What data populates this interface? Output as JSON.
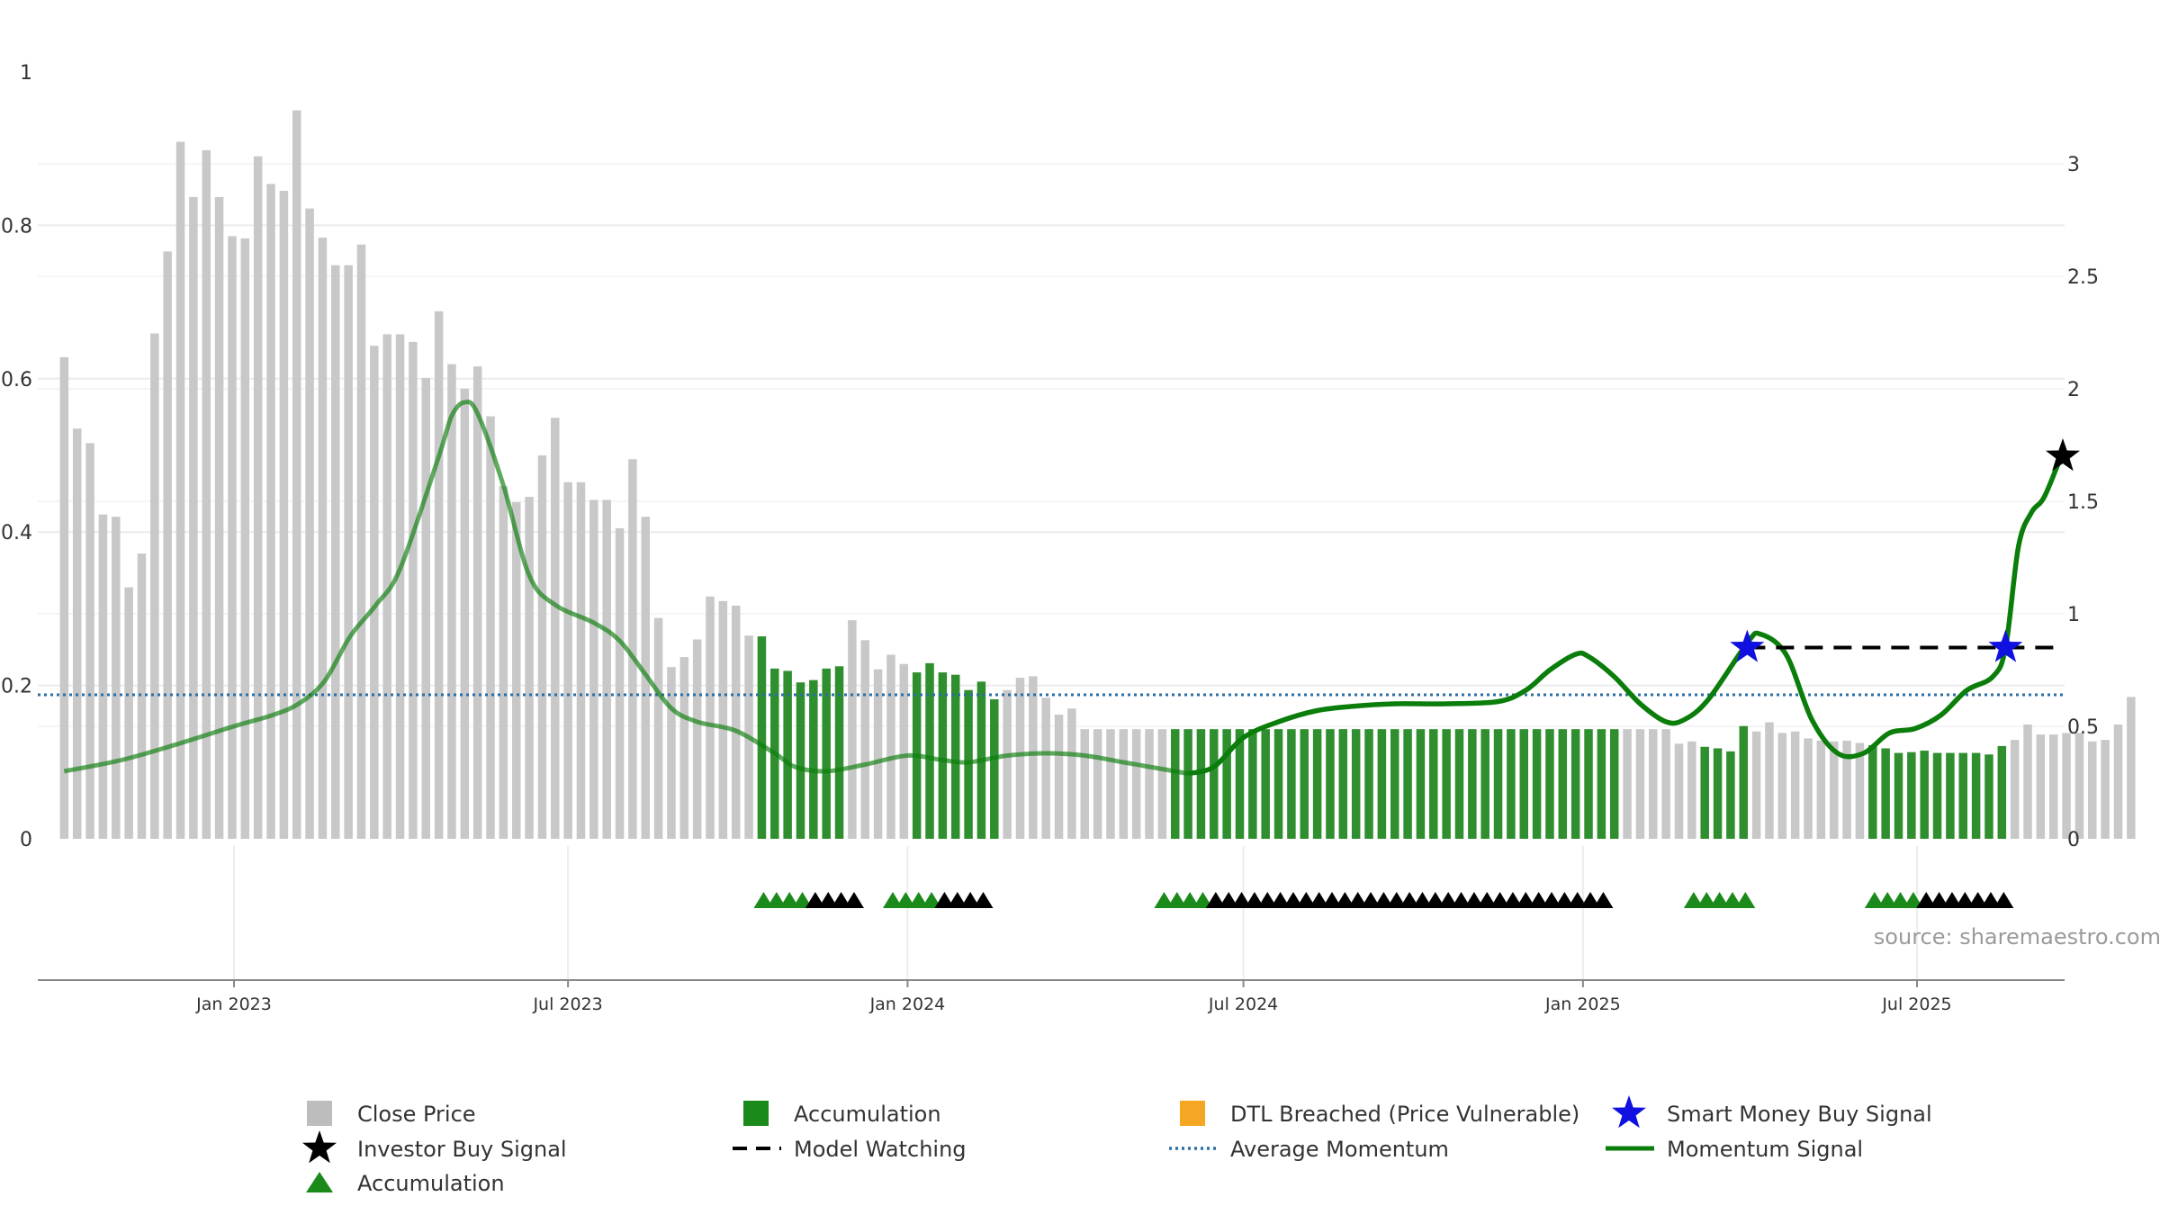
{
  "chart_data": {
    "type": "bar",
    "x_axis": {
      "ticks": [
        "Jan 2023",
        "Jul 2023",
        "Jan 2024",
        "Jul 2024",
        "Jan 2025",
        "Jul 2025"
      ],
      "tick_dates": [
        "2023-01-01",
        "2023-07-01",
        "2024-01-01",
        "2024-07-01",
        "2025-01-01",
        "2025-07-01"
      ],
      "range": [
        "2022-10-01",
        "2025-09-30"
      ]
    },
    "left_axis": {
      "range": [
        0,
        1
      ],
      "ticks": [
        "0",
        "0.2",
        "0.4",
        "0.6",
        "0.8",
        "1"
      ]
    },
    "right_axis": {
      "range": [
        0,
        3.2
      ],
      "ticks": [
        "0",
        "0.5",
        "1",
        "1.5",
        "2",
        "2.5",
        "3"
      ]
    },
    "grid": true,
    "bars": {
      "name": "Close Price",
      "first_week": "2022-10-01",
      "interval_days": 7,
      "values": [
        0.628,
        0.535,
        0.516,
        0.423,
        0.42,
        0.328,
        0.372,
        0.659,
        0.766,
        0.909,
        0.837,
        0.898,
        0.837,
        0.786,
        0.783,
        0.89,
        0.854,
        0.845,
        0.95,
        0.822,
        0.784,
        0.748,
        0.748,
        0.775,
        0.643,
        0.658,
        0.658,
        0.648,
        0.601,
        0.688,
        0.619,
        0.587,
        0.616,
        0.551,
        0.46,
        0.439,
        0.446,
        0.5,
        0.549,
        0.465,
        0.465,
        0.442,
        0.442,
        0.405,
        0.495,
        0.42,
        0.288,
        0.224,
        0.237,
        0.26,
        0.316,
        0.31,
        0.304,
        0.265,
        0.264,
        0.222,
        0.219,
        0.204,
        0.207,
        0.222,
        0.225,
        0.285,
        0.259,
        0.221,
        0.24,
        0.228,
        0.217,
        0.229,
        0.217,
        0.214,
        0.194,
        0.205,
        0.182,
        0.194,
        0.21,
        0.212,
        0.184,
        0.162,
        0.17,
        0.143,
        0.143,
        0.143,
        0.143,
        0.143,
        0.143,
        0.143,
        0.143,
        0.143,
        0.143,
        0.143,
        0.143,
        0.143,
        0.143,
        0.143,
        0.143,
        0.143,
        0.143,
        0.143,
        0.143,
        0.143,
        0.143,
        0.143,
        0.143,
        0.143,
        0.143,
        0.143,
        0.143,
        0.143,
        0.143,
        0.143,
        0.143,
        0.143,
        0.143,
        0.143,
        0.143,
        0.143,
        0.143,
        0.143,
        0.143,
        0.143,
        0.143,
        0.143,
        0.143,
        0.143,
        0.143,
        0.124,
        0.127,
        0.12,
        0.118,
        0.114,
        0.147,
        0.14,
        0.152,
        0.138,
        0.14,
        0.131,
        0.128,
        0.127,
        0.128,
        0.125,
        0.122,
        0.118,
        0.112,
        0.113,
        0.115,
        0.112,
        0.112,
        0.112,
        0.112,
        0.11,
        0.121,
        0.129,
        0.149,
        0.136,
        0.136,
        0.138,
        0.138,
        0.127,
        0.129,
        0.149,
        0.185
      ],
      "accumulation_ranges": [
        [
          54,
          60
        ],
        [
          66,
          72
        ],
        [
          86,
          120
        ],
        [
          127,
          130
        ],
        [
          140,
          150
        ]
      ],
      "colors": {
        "price": "#c8c8c8",
        "accumulation": "#2f8f2f"
      }
    },
    "momentum_signal": {
      "name": "Momentum Signal",
      "color": "#0a7d0a",
      "points": [
        [
          "2022-10-01",
          0.3
        ],
        [
          "2022-11-01",
          0.35
        ],
        [
          "2022-12-01",
          0.42
        ],
        [
          "2023-01-01",
          0.5
        ],
        [
          "2023-01-22",
          0.55
        ],
        [
          "2023-02-05",
          0.6
        ],
        [
          "2023-02-19",
          0.7
        ],
        [
          "2023-03-05",
          0.9
        ],
        [
          "2023-03-19",
          1.04
        ],
        [
          "2023-04-01",
          1.2
        ],
        [
          "2023-04-22",
          1.7
        ],
        [
          "2023-04-29",
          1.88
        ],
        [
          "2023-05-06",
          1.94
        ],
        [
          "2023-05-13",
          1.89
        ],
        [
          "2023-05-27",
          1.57
        ],
        [
          "2023-06-10",
          1.17
        ],
        [
          "2023-06-24",
          1.04
        ],
        [
          "2023-07-15",
          0.96
        ],
        [
          "2023-07-29",
          0.88
        ],
        [
          "2023-08-12",
          0.73
        ],
        [
          "2023-08-26",
          0.58
        ],
        [
          "2023-09-09",
          0.52
        ],
        [
          "2023-09-30",
          0.48
        ],
        [
          "2023-10-21",
          0.38
        ],
        [
          "2023-11-01",
          0.32
        ],
        [
          "2023-11-18",
          0.3
        ],
        [
          "2023-12-09",
          0.33
        ],
        [
          "2024-01-01",
          0.37
        ],
        [
          "2024-01-20",
          0.35
        ],
        [
          "2024-02-03",
          0.34
        ],
        [
          "2024-02-24",
          0.37
        ],
        [
          "2024-03-16",
          0.38
        ],
        [
          "2024-04-06",
          0.37
        ],
        [
          "2024-04-27",
          0.34
        ],
        [
          "2024-05-18",
          0.31
        ],
        [
          "2024-06-01",
          0.29
        ],
        [
          "2024-06-15",
          0.32
        ],
        [
          "2024-07-01",
          0.45
        ],
        [
          "2024-07-20",
          0.52
        ],
        [
          "2024-08-10",
          0.57
        ],
        [
          "2024-08-31",
          0.59
        ],
        [
          "2024-09-21",
          0.6
        ],
        [
          "2024-10-19",
          0.6
        ],
        [
          "2024-11-16",
          0.61
        ],
        [
          "2024-12-01",
          0.66
        ],
        [
          "2024-12-14",
          0.75
        ],
        [
          "2024-12-28",
          0.82
        ],
        [
          "2025-01-04",
          0.81
        ],
        [
          "2025-01-18",
          0.72
        ],
        [
          "2025-02-01",
          0.6
        ],
        [
          "2025-02-15",
          0.52
        ],
        [
          "2025-02-25",
          0.53
        ],
        [
          "2025-03-10",
          0.62
        ],
        [
          "2025-03-31",
          0.87
        ],
        [
          "2025-04-07",
          0.91
        ],
        [
          "2025-04-21",
          0.82
        ],
        [
          "2025-05-05",
          0.53
        ],
        [
          "2025-05-19",
          0.38
        ],
        [
          "2025-06-02",
          0.38
        ],
        [
          "2025-06-16",
          0.47
        ],
        [
          "2025-06-30",
          0.49
        ],
        [
          "2025-07-14",
          0.55
        ],
        [
          "2025-07-28",
          0.66
        ],
        [
          "2025-08-11",
          0.72
        ],
        [
          "2025-08-18",
          0.85
        ],
        [
          "2025-08-25",
          1.3
        ],
        [
          "2025-09-01",
          1.45
        ],
        [
          "2025-09-08",
          1.52
        ],
        [
          "2025-09-18",
          1.72
        ]
      ]
    },
    "average_momentum": {
      "name": "Average Momentum",
      "value": 0.64,
      "color": "#2a6ea6"
    },
    "model_watching": {
      "name": "Model Watching",
      "from": "2025-03-31",
      "to": "2025-09-18",
      "value": 0.85
    },
    "smart_money_buy_signals": {
      "name": "Smart Money Buy Signal",
      "color": "#1010e0",
      "points": [
        [
          "2025-03-31",
          0.85
        ],
        [
          "2025-08-18",
          0.85
        ]
      ]
    },
    "investor_buy_signals": {
      "name": "Investor Buy Signal",
      "points": [
        [
          "2025-09-18",
          1.7
        ]
      ]
    },
    "marker_row": {
      "green_color": "#1a8a1a",
      "black_color": "#000000",
      "groups": [
        {
          "start": "2023-10-15",
          "green": 4,
          "black": 4
        },
        {
          "start": "2023-12-24",
          "green": 4,
          "black": 4
        },
        {
          "start": "2024-05-19",
          "green": 4,
          "black": 31
        },
        {
          "start": "2025-03-02",
          "green": 5,
          "black": 0
        },
        {
          "start": "2025-06-08",
          "green": 4,
          "black": 7
        }
      ]
    },
    "source": "source: sharemaestro.com",
    "legend": {
      "placement": "bottom",
      "items": [
        {
          "label": "Close Price",
          "symbol": "square",
          "color": "#bdbdbd"
        },
        {
          "label": "Accumulation",
          "symbol": "square",
          "color": "#1a8a1a"
        },
        {
          "label": "DTL Breached (Price Vulnerable)",
          "symbol": "square",
          "color": "#f5a623"
        },
        {
          "label": "Smart Money Buy Signal",
          "symbol": "star",
          "color": "#1010e0"
        },
        {
          "label": "Investor Buy Signal",
          "symbol": "star",
          "color": "#000000"
        },
        {
          "label": "Model Watching",
          "symbol": "dash",
          "color": "#000000"
        },
        {
          "label": "Average Momentum",
          "symbol": "dot",
          "color": "#2a6ea6"
        },
        {
          "label": "Momentum Signal",
          "symbol": "line",
          "color": "#0a7d0a"
        },
        {
          "label": "Accumulation",
          "symbol": "triangle",
          "color": "#1a8a1a"
        }
      ]
    }
  }
}
